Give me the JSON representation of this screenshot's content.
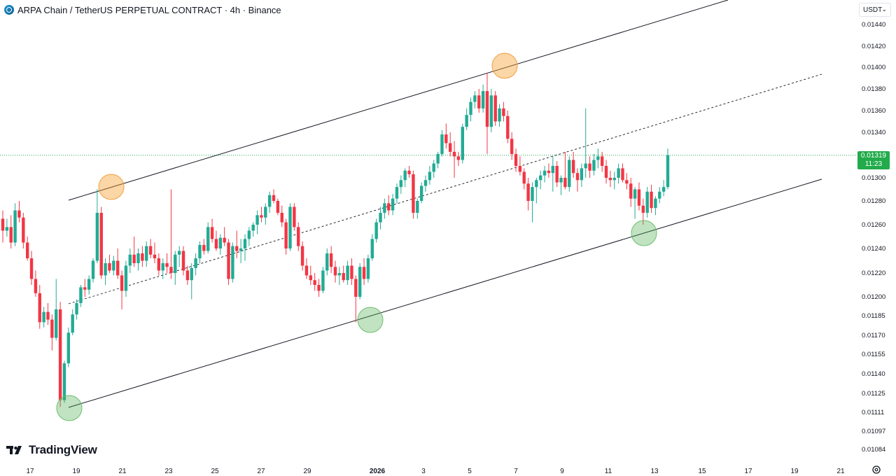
{
  "header": {
    "title": "ARPA Chain / TetherUS PERPETUAL CONTRACT · 4h · Binance",
    "currency": "USDT"
  },
  "last_price": {
    "value": "0.01319",
    "countdown": "11:23"
  },
  "brand": {
    "name": "TradingView",
    "icon": "tradingview-logo-icon"
  },
  "settings_icon": "gear-icon",
  "colors": {
    "up": "#22ab94",
    "down": "#f23645",
    "channel": "#131722",
    "orange_marker": "#f7a53a",
    "green_marker": "#4caf50",
    "price_line": "#22ab4b",
    "grid_text": "#131722"
  },
  "chart_data": {
    "type": "candlestick",
    "symbol": "ARPA Chain / TetherUS PERPETUAL CONTRACT",
    "interval": "4h",
    "exchange": "Binance",
    "y_axis": {
      "ticks": [
        "0.01440",
        "0.01420",
        "0.01400",
        "0.01380",
        "0.01360",
        "0.01340",
        "0.01320",
        "0.01300",
        "0.01280",
        "0.01260",
        "0.01240",
        "0.01220",
        "0.01200",
        "0.01185",
        "0.01170",
        "0.01155",
        "0.01140",
        "0.01125",
        "0.01111",
        "0.01097",
        "0.01084"
      ],
      "scale": "log"
    },
    "x_axis": {
      "ticks": [
        "17",
        "19",
        "21",
        "23",
        "25",
        "27",
        "29",
        "2026",
        "3",
        "5",
        "7",
        "9",
        "11",
        "13",
        "15",
        "17",
        "19",
        "21"
      ]
    },
    "candles": [
      [
        0.01265,
        0.01272,
        0.01245,
        0.01255
      ],
      [
        0.01255,
        0.01265,
        0.0125,
        0.01258
      ],
      [
        0.01258,
        0.01268,
        0.0124,
        0.01245
      ],
      [
        0.01245,
        0.01278,
        0.01242,
        0.01272
      ],
      [
        0.01272,
        0.0128,
        0.01262,
        0.01266
      ],
      [
        0.01266,
        0.0127,
        0.0124,
        0.01245
      ],
      [
        0.01245,
        0.0125,
        0.0123,
        0.01232
      ],
      [
        0.01232,
        0.01238,
        0.0121,
        0.01215
      ],
      [
        0.01215,
        0.01222,
        0.012,
        0.01203
      ],
      [
        0.01203,
        0.0121,
        0.01175,
        0.0118
      ],
      [
        0.0118,
        0.01192,
        0.01176,
        0.01188
      ],
      [
        0.01188,
        0.01195,
        0.01178,
        0.01182
      ],
      [
        0.01182,
        0.01186,
        0.01158,
        0.01168
      ],
      [
        0.01168,
        0.01215,
        0.01166,
        0.0119
      ],
      [
        0.0119,
        0.01196,
        0.01115,
        0.0112
      ],
      [
        0.0112,
        0.0115,
        0.01118,
        0.01148
      ],
      [
        0.01148,
        0.01176,
        0.01145,
        0.01172
      ],
      [
        0.01172,
        0.0119,
        0.0117,
        0.01186
      ],
      [
        0.01186,
        0.01198,
        0.01182,
        0.01195
      ],
      [
        0.01195,
        0.0121,
        0.01192,
        0.01208
      ],
      [
        0.01208,
        0.01215,
        0.012,
        0.01206
      ],
      [
        0.01206,
        0.01218,
        0.01202,
        0.01215
      ],
      [
        0.01215,
        0.01232,
        0.01212,
        0.0123
      ],
      [
        0.0123,
        0.0129,
        0.01228,
        0.0127
      ],
      [
        0.0127,
        0.01275,
        0.01215,
        0.01218
      ],
      [
        0.01218,
        0.01232,
        0.0121,
        0.01228
      ],
      [
        0.01228,
        0.01235,
        0.0122,
        0.01222
      ],
      [
        0.01222,
        0.01234,
        0.01218,
        0.0123
      ],
      [
        0.0123,
        0.0124,
        0.01215,
        0.01218
      ],
      [
        0.01218,
        0.01222,
        0.0119,
        0.01205
      ],
      [
        0.01205,
        0.0123,
        0.012,
        0.01226
      ],
      [
        0.01226,
        0.0124,
        0.0122,
        0.01235
      ],
      [
        0.01235,
        0.0125,
        0.01225,
        0.01228
      ],
      [
        0.01228,
        0.0124,
        0.01222,
        0.01236
      ],
      [
        0.01236,
        0.01242,
        0.01225,
        0.0123
      ],
      [
        0.0123,
        0.01246,
        0.01225,
        0.01242
      ],
      [
        0.01242,
        0.01248,
        0.01232,
        0.01235
      ],
      [
        0.01235,
        0.01245,
        0.01228,
        0.01232
      ],
      [
        0.01232,
        0.01236,
        0.01218,
        0.01222
      ],
      [
        0.01222,
        0.01232,
        0.01215,
        0.01228
      ],
      [
        0.01228,
        0.01236,
        0.0122,
        0.01225
      ],
      [
        0.01225,
        0.0129,
        0.01215,
        0.0122
      ],
      [
        0.0122,
        0.01238,
        0.0121,
        0.01235
      ],
      [
        0.01235,
        0.01242,
        0.01225,
        0.01238
      ],
      [
        0.01238,
        0.01242,
        0.01218,
        0.01222
      ],
      [
        0.01222,
        0.01226,
        0.0121,
        0.01214
      ],
      [
        0.01214,
        0.01228,
        0.01198,
        0.01224
      ],
      [
        0.01224,
        0.01236,
        0.01218,
        0.01232
      ],
      [
        0.01232,
        0.01246,
        0.01228,
        0.01243
      ],
      [
        0.01243,
        0.01248,
        0.01235,
        0.01238
      ],
      [
        0.01238,
        0.01262,
        0.01236,
        0.01258
      ],
      [
        0.01258,
        0.01265,
        0.01245,
        0.01248
      ],
      [
        0.01248,
        0.01255,
        0.01238,
        0.0124
      ],
      [
        0.0124,
        0.01252,
        0.01235,
        0.01249
      ],
      [
        0.01249,
        0.01258,
        0.01242,
        0.01245
      ],
      [
        0.01245,
        0.01248,
        0.0121,
        0.01215
      ],
      [
        0.01215,
        0.01245,
        0.01212,
        0.01242
      ],
      [
        0.01242,
        0.01255,
        0.01232,
        0.01238
      ],
      [
        0.01238,
        0.01248,
        0.01228,
        0.0124
      ],
      [
        0.0124,
        0.01252,
        0.0123,
        0.01248
      ],
      [
        0.01248,
        0.01258,
        0.01242,
        0.01255
      ],
      [
        0.01255,
        0.01262,
        0.0125,
        0.0126
      ],
      [
        0.0126,
        0.01272,
        0.01252,
        0.01268
      ],
      [
        0.01268,
        0.01275,
        0.01262,
        0.01266
      ],
      [
        0.01266,
        0.01278,
        0.0126,
        0.01275
      ],
      [
        0.01275,
        0.01288,
        0.0127,
        0.01285
      ],
      [
        0.01285,
        0.0129,
        0.01278,
        0.0128
      ],
      [
        0.0128,
        0.01282,
        0.01268,
        0.0127
      ],
      [
        0.0127,
        0.01276,
        0.01258,
        0.01262
      ],
      [
        0.01262,
        0.01265,
        0.01235,
        0.0124
      ],
      [
        0.0124,
        0.01278,
        0.01238,
        0.01275
      ],
      [
        0.01275,
        0.01278,
        0.01255,
        0.01258
      ],
      [
        0.01258,
        0.01262,
        0.01238,
        0.01242
      ],
      [
        0.01242,
        0.01246,
        0.01222,
        0.01226
      ],
      [
        0.01226,
        0.01232,
        0.01215,
        0.01218
      ],
      [
        0.01218,
        0.01226,
        0.0121,
        0.01214
      ],
      [
        0.01214,
        0.0122,
        0.01205,
        0.0121
      ],
      [
        0.0121,
        0.01215,
        0.012,
        0.01205
      ],
      [
        0.01205,
        0.01225,
        0.01203,
        0.01222
      ],
      [
        0.01222,
        0.0124,
        0.01218,
        0.01236
      ],
      [
        0.01236,
        0.01242,
        0.0122,
        0.01225
      ],
      [
        0.01225,
        0.0123,
        0.01212,
        0.01218
      ],
      [
        0.01218,
        0.01225,
        0.0121,
        0.0122
      ],
      [
        0.0122,
        0.01226,
        0.01212,
        0.01214
      ],
      [
        0.01214,
        0.0123,
        0.0121,
        0.01226
      ],
      [
        0.01226,
        0.01232,
        0.0121,
        0.01215
      ],
      [
        0.01215,
        0.01218,
        0.0118,
        0.012
      ],
      [
        0.012,
        0.01228,
        0.01198,
        0.01225
      ],
      [
        0.01225,
        0.01232,
        0.0121,
        0.01215
      ],
      [
        0.01215,
        0.01235,
        0.01212,
        0.01232
      ],
      [
        0.01232,
        0.01252,
        0.0123,
        0.01248
      ],
      [
        0.01248,
        0.01265,
        0.01245,
        0.01262
      ],
      [
        0.01262,
        0.01275,
        0.01256,
        0.0127
      ],
      [
        0.0127,
        0.01282,
        0.01265,
        0.01278
      ],
      [
        0.01278,
        0.01285,
        0.01268,
        0.01272
      ],
      [
        0.01272,
        0.01286,
        0.01268,
        0.01282
      ],
      [
        0.01282,
        0.01295,
        0.01278,
        0.01292
      ],
      [
        0.01292,
        0.01302,
        0.01286,
        0.01298
      ],
      [
        0.01298,
        0.01308,
        0.01292,
        0.01306
      ],
      [
        0.01306,
        0.0131,
        0.013,
        0.01303
      ],
      [
        0.01303,
        0.01306,
        0.01265,
        0.0127
      ],
      [
        0.0127,
        0.01282,
        0.01265,
        0.0128
      ],
      [
        0.0128,
        0.01296,
        0.01278,
        0.01293
      ],
      [
        0.01293,
        0.01302,
        0.01288,
        0.01298
      ],
      [
        0.01298,
        0.0131,
        0.01294,
        0.01305
      ],
      [
        0.01305,
        0.01315,
        0.013,
        0.01312
      ],
      [
        0.01312,
        0.01322,
        0.01308,
        0.0132
      ],
      [
        0.0132,
        0.01342,
        0.01318,
        0.01338
      ],
      [
        0.01338,
        0.01348,
        0.01325,
        0.0133
      ],
      [
        0.0133,
        0.0134,
        0.01318,
        0.01322
      ],
      [
        0.01322,
        0.01332,
        0.013,
        0.01318
      ],
      [
        0.01318,
        0.01322,
        0.0131,
        0.01315
      ],
      [
        0.01315,
        0.01348,
        0.01312,
        0.01345
      ],
      [
        0.01345,
        0.01362,
        0.01342,
        0.01356
      ],
      [
        0.01356,
        0.01372,
        0.0135,
        0.01368
      ],
      [
        0.01368,
        0.01378,
        0.01362,
        0.01374
      ],
      [
        0.01374,
        0.0138,
        0.01358,
        0.01362
      ],
      [
        0.01362,
        0.01384,
        0.01358,
        0.01378
      ],
      [
        0.01378,
        0.01395,
        0.0132,
        0.01345
      ],
      [
        0.01345,
        0.0138,
        0.0134,
        0.01374
      ],
      [
        0.01374,
        0.01378,
        0.01346,
        0.0135
      ],
      [
        0.0135,
        0.01366,
        0.01345,
        0.01362
      ],
      [
        0.01362,
        0.01368,
        0.0135,
        0.01355
      ],
      [
        0.01355,
        0.0136,
        0.0133,
        0.01334
      ],
      [
        0.01334,
        0.0134,
        0.01315,
        0.0132
      ],
      [
        0.0132,
        0.01325,
        0.01305,
        0.0131
      ],
      [
        0.0131,
        0.01318,
        0.01302,
        0.01305
      ],
      [
        0.01305,
        0.01308,
        0.0129,
        0.01295
      ],
      [
        0.01295,
        0.013,
        0.01272,
        0.0128
      ],
      [
        0.0128,
        0.01296,
        0.01262,
        0.01292
      ],
      [
        0.01292,
        0.013,
        0.01278,
        0.01298
      ],
      [
        0.01298,
        0.01306,
        0.0129,
        0.01302
      ],
      [
        0.01302,
        0.0131,
        0.01296,
        0.01306
      ],
      [
        0.01306,
        0.01312,
        0.013,
        0.01304
      ],
      [
        0.01304,
        0.01318,
        0.01288,
        0.0131
      ],
      [
        0.0131,
        0.01314,
        0.01292,
        0.01296
      ],
      [
        0.01296,
        0.01302,
        0.01285,
        0.013
      ],
      [
        0.013,
        0.01322,
        0.0129,
        0.01292
      ],
      [
        0.01292,
        0.01318,
        0.01288,
        0.01315
      ],
      [
        0.01315,
        0.01322,
        0.013,
        0.01304
      ],
      [
        0.01304,
        0.01308,
        0.01288,
        0.01298
      ],
      [
        0.01298,
        0.01312,
        0.01292,
        0.01308
      ],
      [
        0.01308,
        0.01362,
        0.013,
        0.01312
      ],
      [
        0.01312,
        0.01318,
        0.013,
        0.01306
      ],
      [
        0.01306,
        0.0132,
        0.01302,
        0.01315
      ],
      [
        0.01315,
        0.01325,
        0.01308,
        0.01318
      ],
      [
        0.01318,
        0.01322,
        0.01305,
        0.0131
      ],
      [
        0.0131,
        0.01315,
        0.01295,
        0.013
      ],
      [
        0.013,
        0.01306,
        0.01292,
        0.01298
      ],
      [
        0.01298,
        0.01305,
        0.0129,
        0.013
      ],
      [
        0.013,
        0.01312,
        0.01295,
        0.01308
      ],
      [
        0.01308,
        0.01312,
        0.01296,
        0.01298
      ],
      [
        0.01298,
        0.01304,
        0.0129,
        0.01295
      ],
      [
        0.01295,
        0.013,
        0.01275,
        0.01282
      ],
      [
        0.01282,
        0.01292,
        0.01265,
        0.0129
      ],
      [
        0.0129,
        0.01296,
        0.01272,
        0.01276
      ],
      [
        0.01276,
        0.01282,
        0.0126,
        0.0127
      ],
      [
        0.0127,
        0.01292,
        0.01266,
        0.01288
      ],
      [
        0.01288,
        0.01294,
        0.0127,
        0.01274
      ],
      [
        0.01274,
        0.01284,
        0.01268,
        0.01282
      ],
      [
        0.01282,
        0.01292,
        0.01278,
        0.01288
      ],
      [
        0.01288,
        0.01298,
        0.01284,
        0.01292
      ],
      [
        0.01292,
        0.01325,
        0.0129,
        0.01319
      ]
    ],
    "trendlines": [
      {
        "name": "upper",
        "style": "solid",
        "from": [
          0.0128,
          0.0
        ],
        "to": [
          0.0145,
          0.0
        ]
      },
      {
        "name": "middle",
        "style": "dashed"
      },
      {
        "name": "lower",
        "style": "solid"
      }
    ],
    "markers": [
      {
        "kind": "orange",
        "role": "resistance-touch",
        "price": 0.0129
      },
      {
        "kind": "orange",
        "role": "resistance-touch",
        "price": 0.014
      },
      {
        "kind": "green",
        "role": "support-touch",
        "price": 0.01115
      },
      {
        "kind": "green",
        "role": "support-touch",
        "price": 0.01183
      },
      {
        "kind": "green",
        "role": "support-touch",
        "price": 0.01255
      }
    ],
    "last_price_line": 0.01319
  }
}
